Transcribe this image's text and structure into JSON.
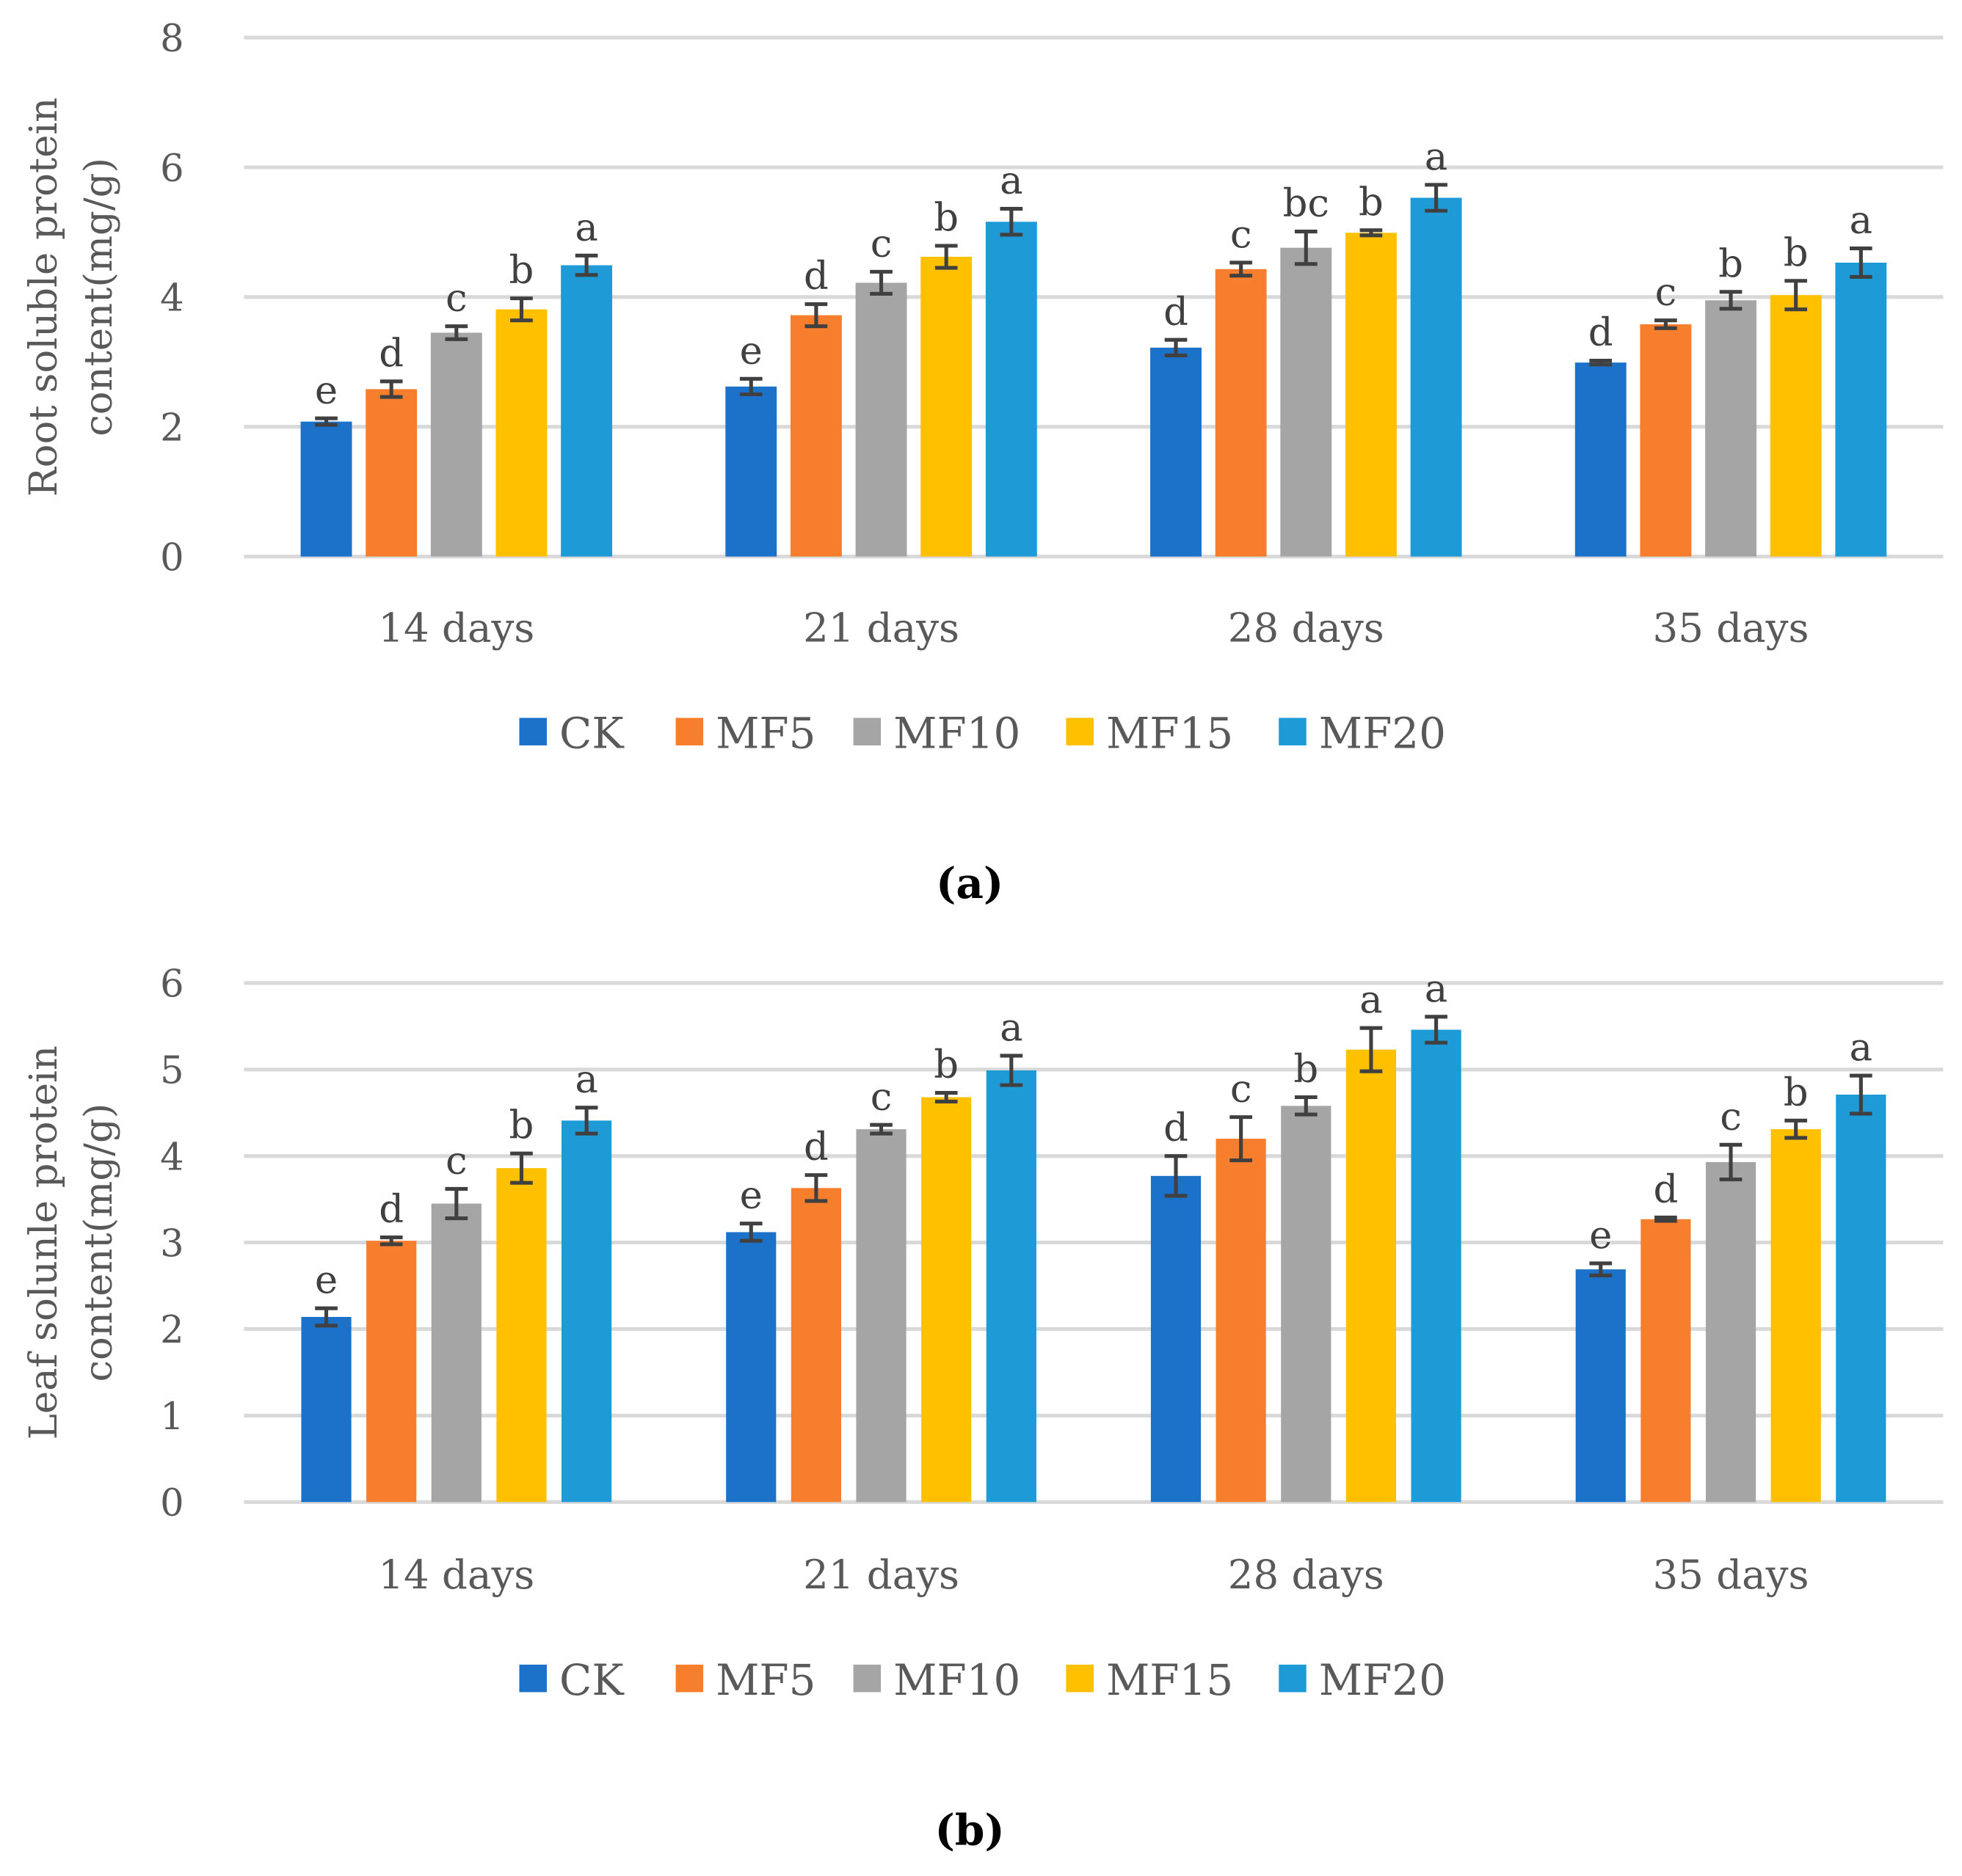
{
  "chart_data": [
    {
      "type": "bar",
      "panel": "(a)",
      "panel_letter": "a",
      "ylabel_line1": "Root soluble protein",
      "ylabel_line2": "content(mg/g)",
      "ylim": [
        0,
        8
      ],
      "yticks": [
        "0",
        "2",
        "4",
        "6",
        "8"
      ],
      "grid": true,
      "legend_position": "bottom",
      "categories": [
        "14 days",
        "21 days",
        "28 days",
        "35 days"
      ],
      "series": [
        {
          "name": "CK",
          "color": "#1C71C8",
          "values": [
            2.08,
            2.62,
            3.22,
            2.99
          ],
          "errors": [
            0.05,
            0.12,
            0.12,
            0.03
          ],
          "letters": [
            "e",
            "e",
            "d",
            "d"
          ]
        },
        {
          "name": "MF5",
          "color": "#F77E2D",
          "values": [
            2.58,
            3.72,
            4.43,
            3.58
          ],
          "errors": [
            0.12,
            0.17,
            0.1,
            0.06
          ],
          "letters": [
            "d",
            "d",
            "c",
            "c"
          ]
        },
        {
          "name": "MF10",
          "color": "#A5A5A5",
          "values": [
            3.45,
            4.22,
            4.76,
            3.95
          ],
          "errors": [
            0.1,
            0.17,
            0.25,
            0.13
          ],
          "letters": [
            "c",
            "c",
            "bc",
            "b"
          ]
        },
        {
          "name": "MF15",
          "color": "#FFC000",
          "values": [
            3.81,
            4.62,
            4.99,
            4.03
          ],
          "errors": [
            0.17,
            0.17,
            0.04,
            0.22
          ],
          "letters": [
            "b",
            "b",
            "b",
            "b"
          ]
        },
        {
          "name": "MF20",
          "color": "#1E9BD7",
          "values": [
            4.49,
            5.16,
            5.53,
            4.53
          ],
          "errors": [
            0.15,
            0.2,
            0.2,
            0.22
          ],
          "letters": [
            "a",
            "a",
            "a",
            "a"
          ]
        }
      ]
    },
    {
      "type": "bar",
      "panel": "(b)",
      "panel_letter": "b",
      "ylabel_line1": "Leaf solunle protein",
      "ylabel_line2": "content(mg/g)",
      "ylim": [
        0,
        6
      ],
      "yticks": [
        "0",
        "1",
        "2",
        "3",
        "4",
        "5",
        "6"
      ],
      "grid": true,
      "legend_position": "bottom",
      "categories": [
        "14 days",
        "21 days",
        "28 days",
        "35 days"
      ],
      "series": [
        {
          "name": "CK",
          "color": "#1C71C8",
          "values": [
            2.14,
            3.12,
            3.77,
            2.69
          ],
          "errors": [
            0.1,
            0.1,
            0.23,
            0.07
          ],
          "letters": [
            "e",
            "e",
            "d",
            "e"
          ]
        },
        {
          "name": "MF5",
          "color": "#F77E2D",
          "values": [
            3.02,
            3.63,
            4.2,
            3.27
          ],
          "errors": [
            0.04,
            0.15,
            0.25,
            0.02
          ],
          "letters": [
            "d",
            "d",
            "c",
            "d"
          ]
        },
        {
          "name": "MF10",
          "color": "#A5A5A5",
          "values": [
            3.45,
            4.31,
            4.58,
            3.93
          ],
          "errors": [
            0.17,
            0.05,
            0.1,
            0.2
          ],
          "letters": [
            "c",
            "c",
            "b",
            "c"
          ]
        },
        {
          "name": "MF15",
          "color": "#FFC000",
          "values": [
            3.86,
            4.68,
            5.23,
            4.31
          ],
          "errors": [
            0.17,
            0.05,
            0.25,
            0.1
          ],
          "letters": [
            "b",
            "b",
            "a",
            "b"
          ]
        },
        {
          "name": "MF20",
          "color": "#1E9BD7",
          "values": [
            4.41,
            4.99,
            5.46,
            4.71
          ],
          "errors": [
            0.15,
            0.17,
            0.15,
            0.22
          ],
          "letters": [
            "a",
            "a",
            "a",
            "a"
          ]
        }
      ]
    }
  ]
}
